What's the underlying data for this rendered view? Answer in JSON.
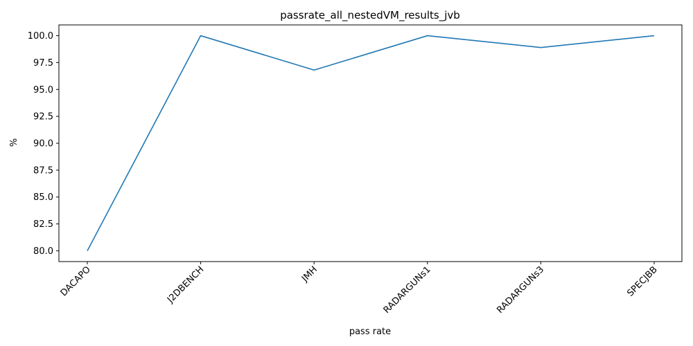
{
  "chart_data": {
    "type": "line",
    "title": "passrate_all_nestedVM_results_jvb",
    "xlabel": "pass rate",
    "ylabel": "%",
    "categories": [
      "DACAPO",
      "J2DBENCH",
      "JMH",
      "RADARGUNs1",
      "RADARGUNs3",
      "SPECJBB"
    ],
    "series": [
      {
        "values": [
          80.0,
          100.0,
          96.8,
          100.0,
          98.9,
          100.0
        ],
        "color": "#1f77b4"
      }
    ],
    "ylim": [
      79.0,
      101.0
    ],
    "yticks": [
      "80.0",
      "82.5",
      "85.0",
      "87.5",
      "90.0",
      "92.5",
      "95.0",
      "97.5",
      "100.0"
    ],
    "grid": false,
    "legend": "none"
  }
}
